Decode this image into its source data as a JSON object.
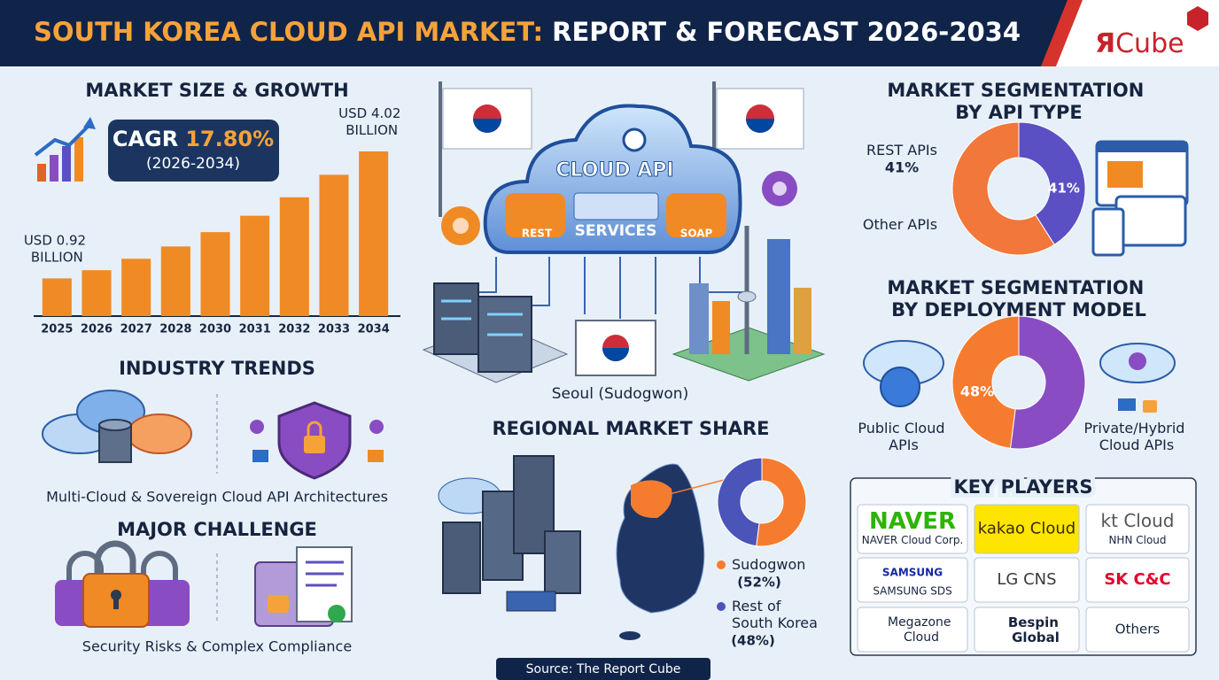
{
  "header": {
    "title_highlight": "SOUTH KOREA CLOUD API MARKET:",
    "title_rest": "REPORT & FORECAST 2026-2034",
    "logo_mark": "Я",
    "logo_text": "Cube"
  },
  "chart_data": [
    {
      "type": "bar",
      "title": "MARKET SIZE & GROWTH",
      "categories": [
        "2025",
        "2026",
        "2027",
        "2028",
        "2030",
        "2031",
        "2032",
        "2033",
        "2034"
      ],
      "values": [
        0.92,
        1.12,
        1.4,
        1.7,
        2.05,
        2.45,
        2.9,
        3.45,
        4.02
      ],
      "value_labels": [
        "USD 0.92 BILLION",
        null,
        null,
        null,
        null,
        null,
        null,
        null,
        "USD 4.02 BILLION"
      ],
      "color": "#f08a24",
      "cagr_label": "CAGR",
      "cagr_value": "17.80%",
      "cagr_period": "(2026-2034)"
    },
    {
      "type": "donut",
      "title": "MARKET SEGMENTATION BY API TYPE",
      "categories": [
        "REST APIs",
        "Other APIs"
      ],
      "values": [
        41,
        59
      ],
      "value_labels": [
        "41%",
        null
      ],
      "colors": [
        "#5b4fc4",
        "#f2773a"
      ]
    },
    {
      "type": "donut",
      "title": "MARKET SEGMENTATION BY DEPLOYMENT MODEL",
      "categories": [
        "Public Cloud APIs",
        "Private/Hybrid Cloud APIs"
      ],
      "values": [
        48,
        52
      ],
      "value_labels": [
        "48%",
        null
      ],
      "colors": [
        "#f57c2f",
        "#8a4cc2"
      ]
    },
    {
      "type": "donut",
      "title": "REGIONAL MARKET SHARE",
      "categories": [
        "Sudogwon",
        "Rest of South Korea"
      ],
      "values": [
        52,
        48
      ],
      "value_labels": [
        "(52%)",
        "(48%)"
      ],
      "colors": [
        "#f57c2f",
        "#4b54b8"
      ]
    }
  ],
  "trends": {
    "title": "INDUSTRY TRENDS",
    "caption": "Multi-Cloud & Sovereign Cloud API Architectures"
  },
  "challenge": {
    "title": "MAJOR CHALLENGE",
    "caption": "Security Risks & Complex Compliance"
  },
  "illustration": {
    "cloud_title": "CLOUD API",
    "services": "SERVICES",
    "rest": "REST",
    "soap": "SOAP",
    "city": "Seoul (Sudogwon)"
  },
  "key_players": {
    "title": "KEY PLAYERS",
    "players": [
      {
        "lines": [
          "NAVER",
          "NAVER Cloud Corp."
        ]
      },
      {
        "lines": [
          "kakao Cloud"
        ]
      },
      {
        "lines": [
          "kt Cloud",
          "NHN Cloud"
        ]
      },
      {
        "lines": [
          "SAMSUNG",
          "SAMSUNG SDS"
        ]
      },
      {
        "lines": [
          "LG CNS"
        ]
      },
      {
        "lines": [
          "SK C&C"
        ]
      },
      {
        "lines": [
          "Megazone Cloud"
        ]
      },
      {
        "lines": [
          "Bespin Global"
        ]
      },
      {
        "lines": [
          "Others"
        ]
      }
    ]
  },
  "source": "Source: The Report Cube"
}
